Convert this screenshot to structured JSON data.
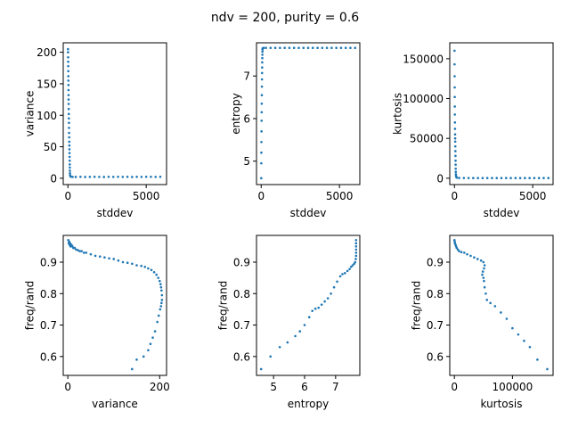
{
  "title": "ndv = 200, purity = 0.6",
  "colors": {
    "points": "#1f77b4"
  },
  "chart_data": [
    {
      "type": "scatter",
      "xlabel": "stddev",
      "ylabel": "variance",
      "xlim": [
        -300,
        6300
      ],
      "ylim": [
        -10,
        215
      ],
      "xticks": [
        0,
        5000
      ],
      "xtick_labels": [
        "0",
        "5000"
      ],
      "yticks": [
        0,
        50,
        100,
        150,
        200
      ],
      "ytick_labels": [
        "0",
        "50",
        "100",
        "150",
        "200"
      ],
      "points": [
        [
          5,
          205
        ],
        [
          8,
          200
        ],
        [
          12,
          192
        ],
        [
          15,
          185
        ],
        [
          18,
          178
        ],
        [
          22,
          170
        ],
        [
          25,
          162
        ],
        [
          28,
          155
        ],
        [
          32,
          148
        ],
        [
          35,
          140
        ],
        [
          38,
          132
        ],
        [
          42,
          125
        ],
        [
          46,
          118
        ],
        [
          50,
          110
        ],
        [
          55,
          102
        ],
        [
          60,
          95
        ],
        [
          65,
          88
        ],
        [
          70,
          80
        ],
        [
          75,
          72
        ],
        [
          80,
          65
        ],
        [
          85,
          58
        ],
        [
          90,
          52
        ],
        [
          95,
          46
        ],
        [
          100,
          40
        ],
        [
          105,
          34
        ],
        [
          110,
          28
        ],
        [
          115,
          22
        ],
        [
          120,
          17
        ],
        [
          125,
          12
        ],
        [
          130,
          8
        ],
        [
          140,
          5
        ],
        [
          160,
          3
        ],
        [
          200,
          2.5
        ],
        [
          300,
          2.2
        ],
        [
          500,
          2.1
        ],
        [
          800,
          2.3
        ],
        [
          1100,
          2.1
        ],
        [
          1400,
          2.2
        ],
        [
          1700,
          2.3
        ],
        [
          2000,
          2.2
        ],
        [
          2300,
          2.1
        ],
        [
          2600,
          2.3
        ],
        [
          2900,
          2.2
        ],
        [
          3200,
          2.4
        ],
        [
          3500,
          2.2
        ],
        [
          3800,
          2.3
        ],
        [
          4100,
          2.1
        ],
        [
          4400,
          2.3
        ],
        [
          4700,
          2.2
        ],
        [
          5000,
          2.4
        ],
        [
          5300,
          2.3
        ],
        [
          5600,
          2.2
        ],
        [
          5900,
          2.3
        ]
      ]
    },
    {
      "type": "scatter",
      "xlabel": "stddev",
      "ylabel": "entropy",
      "xlim": [
        -300,
        6300
      ],
      "ylim": [
        4.45,
        7.78
      ],
      "xticks": [
        0,
        5000
      ],
      "xtick_labels": [
        "0",
        "5000"
      ],
      "yticks": [
        5,
        6,
        7
      ],
      "ytick_labels": [
        "5",
        "6",
        "7"
      ],
      "points": [
        [
          5,
          4.6
        ],
        [
          8,
          4.95
        ],
        [
          12,
          5.2
        ],
        [
          15,
          5.45
        ],
        [
          20,
          5.7
        ],
        [
          25,
          5.95
        ],
        [
          30,
          6.15
        ],
        [
          35,
          6.35
        ],
        [
          40,
          6.55
        ],
        [
          45,
          6.75
        ],
        [
          50,
          6.92
        ],
        [
          55,
          7.07
        ],
        [
          60,
          7.2
        ],
        [
          65,
          7.32
        ],
        [
          70,
          7.42
        ],
        [
          75,
          7.5
        ],
        [
          80,
          7.57
        ],
        [
          85,
          7.62
        ],
        [
          90,
          7.65
        ],
        [
          150,
          7.66
        ],
        [
          300,
          7.66
        ],
        [
          600,
          7.66
        ],
        [
          900,
          7.66
        ],
        [
          1200,
          7.66
        ],
        [
          1500,
          7.66
        ],
        [
          1800,
          7.66
        ],
        [
          2100,
          7.66
        ],
        [
          2400,
          7.66
        ],
        [
          2700,
          7.66
        ],
        [
          3000,
          7.66
        ],
        [
          3300,
          7.66
        ],
        [
          3600,
          7.66
        ],
        [
          3900,
          7.66
        ],
        [
          4200,
          7.66
        ],
        [
          4500,
          7.66
        ],
        [
          4800,
          7.66
        ],
        [
          5100,
          7.66
        ],
        [
          5400,
          7.66
        ],
        [
          5700,
          7.66
        ],
        [
          6000,
          7.66
        ]
      ]
    },
    {
      "type": "scatter",
      "xlabel": "stddev",
      "ylabel": "kurtosis",
      "xlim": [
        -300,
        6300
      ],
      "ylim": [
        -8000,
        170000
      ],
      "xticks": [
        0,
        5000
      ],
      "xtick_labels": [
        "0",
        "5000"
      ],
      "yticks": [
        0,
        50000,
        100000,
        150000
      ],
      "ytick_labels": [
        "0",
        "50000",
        "100000",
        "150000"
      ],
      "points": [
        [
          5,
          160000
        ],
        [
          8,
          143000
        ],
        [
          12,
          128000
        ],
        [
          15,
          114000
        ],
        [
          18,
          102000
        ],
        [
          22,
          90000
        ],
        [
          25,
          80000
        ],
        [
          30,
          70000
        ],
        [
          35,
          62000
        ],
        [
          40,
          55000
        ],
        [
          45,
          50000
        ],
        [
          50,
          46000
        ],
        [
          55,
          40000
        ],
        [
          60,
          34000
        ],
        [
          65,
          28000
        ],
        [
          70,
          22000
        ],
        [
          75,
          17000
        ],
        [
          80,
          12000
        ],
        [
          85,
          8000
        ],
        [
          90,
          5000
        ],
        [
          100,
          3000
        ],
        [
          120,
          1500
        ],
        [
          150,
          700
        ],
        [
          300,
          300
        ],
        [
          600,
          200
        ],
        [
          900,
          200
        ],
        [
          1200,
          150
        ],
        [
          1500,
          150
        ],
        [
          1800,
          150
        ],
        [
          2100,
          150
        ],
        [
          2400,
          150
        ],
        [
          2700,
          150
        ],
        [
          3000,
          150
        ],
        [
          3300,
          150
        ],
        [
          3600,
          150
        ],
        [
          3900,
          150
        ],
        [
          4200,
          150
        ],
        [
          4500,
          150
        ],
        [
          4800,
          150
        ],
        [
          5100,
          150
        ],
        [
          5400,
          150
        ],
        [
          5700,
          150
        ],
        [
          6000,
          150
        ]
      ]
    },
    {
      "type": "scatter",
      "xlabel": "variance",
      "ylabel": "freq/rand",
      "xlim": [
        -10,
        215
      ],
      "ylim": [
        0.54,
        0.985
      ],
      "xticks": [
        0,
        200
      ],
      "xtick_labels": [
        "0",
        "200"
      ],
      "yticks": [
        0.6,
        0.7,
        0.8,
        0.9
      ],
      "ytick_labels": [
        "0.6",
        "0.7",
        "0.8",
        "0.9"
      ],
      "points": [
        [
          1,
          0.97
        ],
        [
          2,
          0.96
        ],
        [
          3,
          0.965
        ],
        [
          4,
          0.955
        ],
        [
          5,
          0.96
        ],
        [
          6,
          0.95
        ],
        [
          8,
          0.955
        ],
        [
          10,
          0.95
        ],
        [
          12,
          0.945
        ],
        [
          15,
          0.945
        ],
        [
          18,
          0.94
        ],
        [
          22,
          0.938
        ],
        [
          26,
          0.935
        ],
        [
          30,
          0.935
        ],
        [
          35,
          0.93
        ],
        [
          40,
          0.93
        ],
        [
          50,
          0.925
        ],
        [
          60,
          0.92
        ],
        [
          70,
          0.918
        ],
        [
          80,
          0.915
        ],
        [
          90,
          0.912
        ],
        [
          100,
          0.91
        ],
        [
          110,
          0.905
        ],
        [
          120,
          0.9
        ],
        [
          130,
          0.898
        ],
        [
          140,
          0.895
        ],
        [
          150,
          0.89
        ],
        [
          160,
          0.888
        ],
        [
          168,
          0.885
        ],
        [
          175,
          0.88
        ],
        [
          182,
          0.875
        ],
        [
          188,
          0.868
        ],
        [
          193,
          0.86
        ],
        [
          197,
          0.85
        ],
        [
          200,
          0.84
        ],
        [
          202,
          0.83
        ],
        [
          203,
          0.82
        ],
        [
          204,
          0.81
        ],
        [
          205,
          0.795
        ],
        [
          205,
          0.78
        ],
        [
          204,
          0.77
        ],
        [
          203,
          0.76
        ],
        [
          201,
          0.75
        ],
        [
          198,
          0.73
        ],
        [
          195,
          0.71
        ],
        [
          190,
          0.68
        ],
        [
          185,
          0.66
        ],
        [
          180,
          0.64
        ],
        [
          175,
          0.62
        ],
        [
          165,
          0.6
        ],
        [
          150,
          0.59
        ],
        [
          140,
          0.56
        ]
      ]
    },
    {
      "type": "scatter",
      "xlabel": "entropy",
      "ylabel": "freq/rand",
      "xlim": [
        4.45,
        7.78
      ],
      "ylim": [
        0.54,
        0.985
      ],
      "xticks": [
        5,
        6,
        7
      ],
      "xtick_labels": [
        "5",
        "6",
        "7"
      ],
      "yticks": [
        0.6,
        0.7,
        0.8,
        0.9
      ],
      "ytick_labels": [
        "0.6",
        "0.7",
        "0.8",
        "0.9"
      ],
      "points": [
        [
          4.6,
          0.56
        ],
        [
          4.9,
          0.6
        ],
        [
          5.2,
          0.63
        ],
        [
          5.45,
          0.645
        ],
        [
          5.7,
          0.665
        ],
        [
          5.85,
          0.68
        ],
        [
          6.0,
          0.7
        ],
        [
          6.15,
          0.725
        ],
        [
          6.25,
          0.745
        ],
        [
          6.35,
          0.752
        ],
        [
          6.45,
          0.755
        ],
        [
          6.55,
          0.765
        ],
        [
          6.65,
          0.775
        ],
        [
          6.75,
          0.785
        ],
        [
          6.85,
          0.8
        ],
        [
          6.95,
          0.82
        ],
        [
          7.05,
          0.838
        ],
        [
          7.15,
          0.855
        ],
        [
          7.22,
          0.862
        ],
        [
          7.3,
          0.865
        ],
        [
          7.38,
          0.872
        ],
        [
          7.45,
          0.878
        ],
        [
          7.5,
          0.885
        ],
        [
          7.55,
          0.89
        ],
        [
          7.6,
          0.895
        ],
        [
          7.63,
          0.9
        ],
        [
          7.65,
          0.91
        ],
        [
          7.66,
          0.92
        ],
        [
          7.66,
          0.93
        ],
        [
          7.66,
          0.94
        ],
        [
          7.66,
          0.95
        ],
        [
          7.66,
          0.96
        ],
        [
          7.66,
          0.97
        ]
      ]
    },
    {
      "type": "scatter",
      "xlabel": "kurtosis",
      "ylabel": "freq/rand",
      "xlim": [
        -8000,
        170000
      ],
      "ylim": [
        0.54,
        0.985
      ],
      "xticks": [
        0,
        100000
      ],
      "xtick_labels": [
        "0",
        "100000"
      ],
      "yticks": [
        0.6,
        0.7,
        0.8,
        0.9
      ],
      "ytick_labels": [
        "0.6",
        "0.7",
        "0.8",
        "0.9"
      ],
      "points": [
        [
          100,
          0.97
        ],
        [
          500,
          0.965
        ],
        [
          1000,
          0.96
        ],
        [
          2000,
          0.955
        ],
        [
          3000,
          0.95
        ],
        [
          4000,
          0.945
        ],
        [
          6000,
          0.94
        ],
        [
          8000,
          0.935
        ],
        [
          12000,
          0.932
        ],
        [
          17000,
          0.93
        ],
        [
          22000,
          0.925
        ],
        [
          28000,
          0.92
        ],
        [
          34000,
          0.915
        ],
        [
          40000,
          0.91
        ],
        [
          46000,
          0.905
        ],
        [
          50000,
          0.9
        ],
        [
          52000,
          0.89
        ],
        [
          51000,
          0.88
        ],
        [
          49000,
          0.87
        ],
        [
          48000,
          0.86
        ],
        [
          50000,
          0.85
        ],
        [
          51000,
          0.84
        ],
        [
          52000,
          0.82
        ],
        [
          54000,
          0.8
        ],
        [
          56000,
          0.78
        ],
        [
          62000,
          0.77
        ],
        [
          70000,
          0.76
        ],
        [
          80000,
          0.74
        ],
        [
          90000,
          0.72
        ],
        [
          100000,
          0.69
        ],
        [
          110000,
          0.67
        ],
        [
          120000,
          0.65
        ],
        [
          130000,
          0.63
        ],
        [
          143000,
          0.59
        ],
        [
          160000,
          0.56
        ]
      ]
    }
  ]
}
